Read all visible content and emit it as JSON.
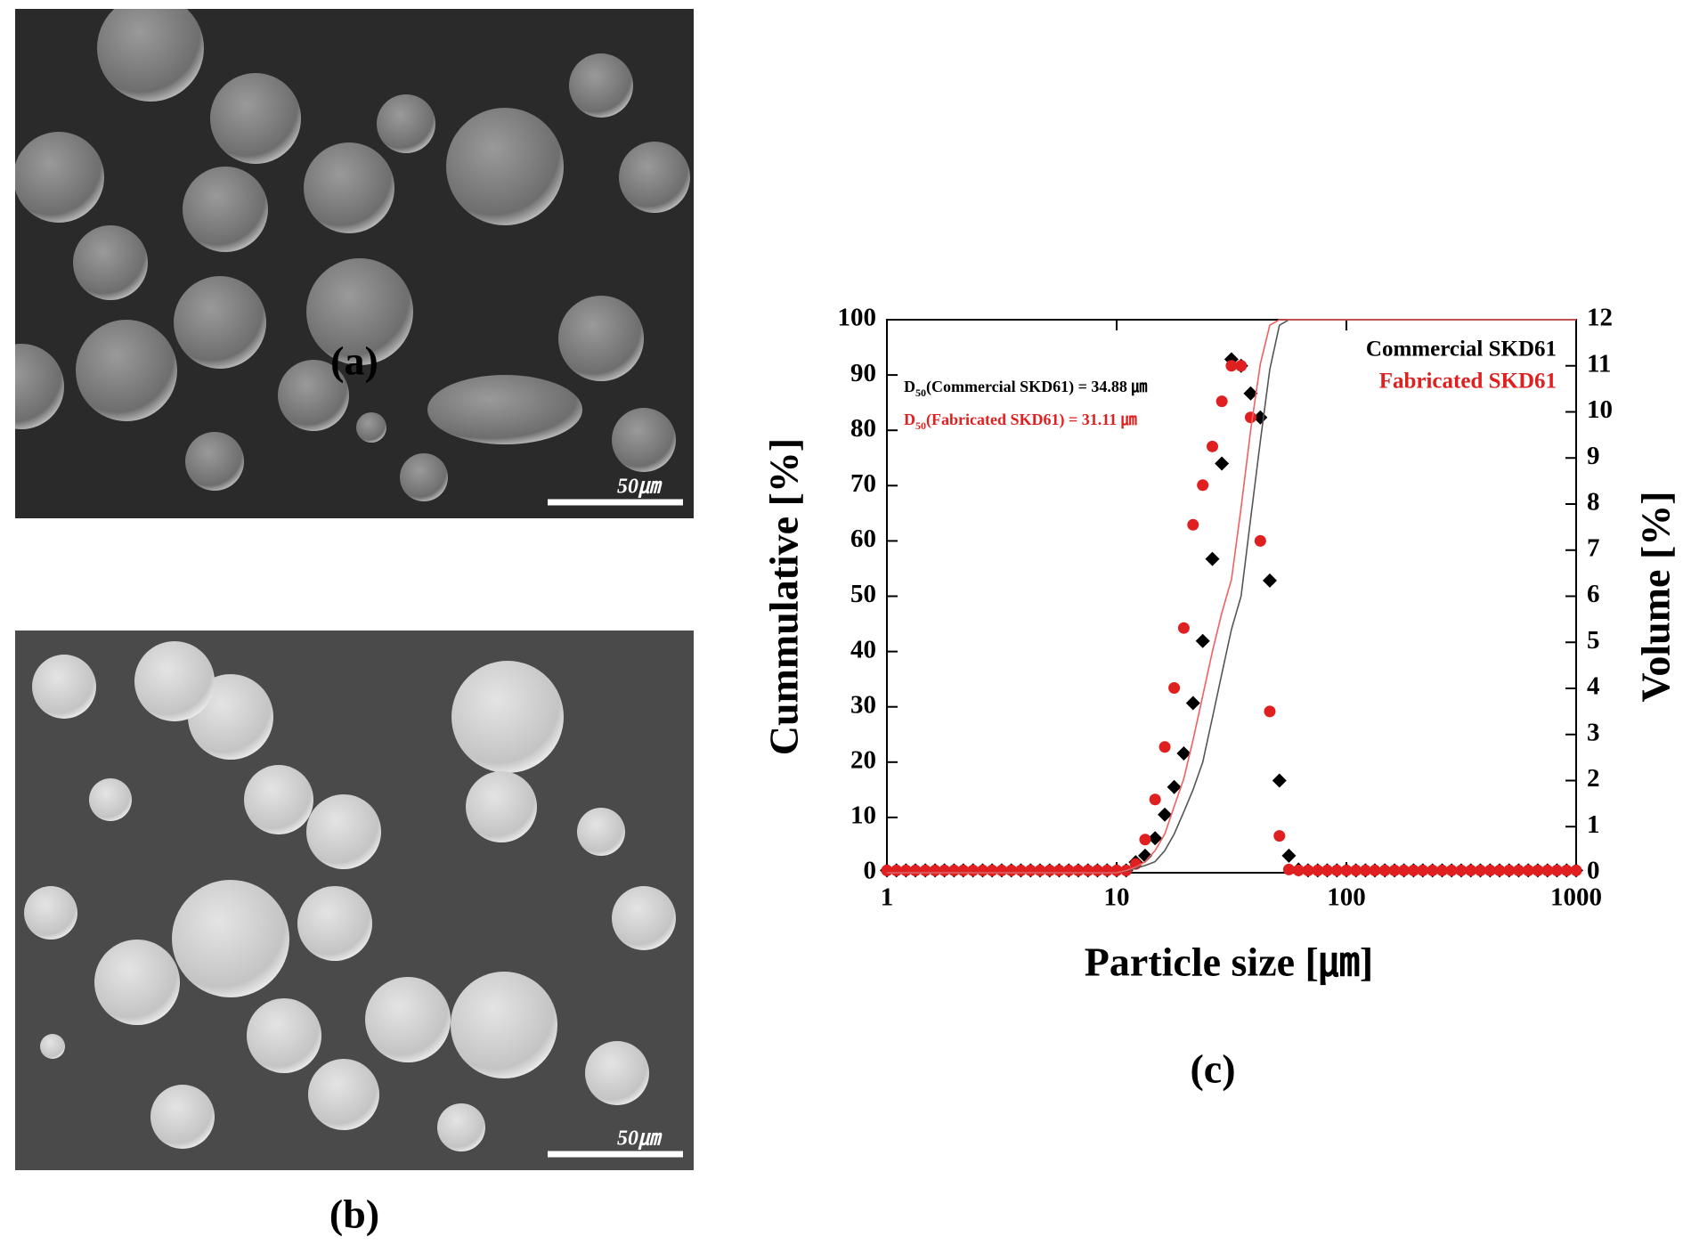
{
  "panels": [
    {
      "label": "(a)",
      "scale_bar": "50㎛"
    },
    {
      "label": "(b)",
      "scale_bar": "50㎛"
    },
    {
      "label": "(c)"
    }
  ],
  "chart_data": {
    "type": "scatter",
    "xscale": "log",
    "xlabel": "Particle size [㎛]",
    "ylabel": "Cummulative [%]",
    "y2label": "Volume [%]",
    "xlim": [
      1,
      1000
    ],
    "xticks": [
      1,
      10,
      100,
      1000
    ],
    "ylim": [
      0,
      100
    ],
    "yticks": [
      0,
      10,
      20,
      30,
      40,
      50,
      60,
      70,
      80,
      90,
      100
    ],
    "y2lim": [
      0,
      12
    ],
    "y2ticks": [
      0,
      1,
      2,
      3,
      4,
      5,
      6,
      7,
      8,
      9,
      10,
      11,
      12
    ],
    "legend": "upper right",
    "annotations": [
      {
        "text": "D",
        "subscript": "50",
        "rest": "(Commercial SKD61) = 34.88 ㎛",
        "color": "#000000"
      },
      {
        "text": "D",
        "subscript": "50",
        "rest": "(Fabricated SKD61) = 31.11 ㎛",
        "color": "#e02020"
      }
    ],
    "x": [
      1,
      1.1,
      1.21,
      1.33,
      1.47,
      1.62,
      1.78,
      1.96,
      2.15,
      2.37,
      2.61,
      2.87,
      3.16,
      3.48,
      3.83,
      4.22,
      4.64,
      5.11,
      5.62,
      6.19,
      6.81,
      7.5,
      8.25,
      9.09,
      10,
      11,
      12.1,
      13.3,
      14.7,
      16.2,
      17.8,
      19.6,
      21.5,
      23.7,
      26.1,
      28.7,
      31.6,
      34.8,
      38.3,
      42.2,
      46.4,
      51.1,
      56.2,
      61.9,
      68.1,
      75,
      82.5,
      90.9,
      100,
      110,
      121,
      133,
      147,
      162,
      178,
      196,
      215,
      237,
      261,
      287,
      316,
      348,
      383,
      422,
      464,
      511,
      562,
      619,
      681,
      750,
      825,
      909,
      1000
    ],
    "series": [
      {
        "name": "Commercial SKD61",
        "color": "#000000",
        "marker": "diamond",
        "axis": "y2",
        "values": [
          0.05,
          0.05,
          0.05,
          0.05,
          0.05,
          0.05,
          0.05,
          0.05,
          0.05,
          0.05,
          0.05,
          0.05,
          0.05,
          0.05,
          0.05,
          0.05,
          0.05,
          0.05,
          0.05,
          0.05,
          0.05,
          0.05,
          0.05,
          0.05,
          0.05,
          0.05,
          0.23,
          0.37,
          0.75,
          1.26,
          1.86,
          2.59,
          3.68,
          5.03,
          6.81,
          8.88,
          11.14,
          11.0,
          10.4,
          9.88,
          6.34,
          2.0,
          0.37,
          0.07,
          0.05,
          0.05,
          0.05,
          0.05,
          0.05,
          0.05,
          0.05,
          0.05,
          0.05,
          0.05,
          0.05,
          0.05,
          0.05,
          0.05,
          0.05,
          0.05,
          0.05,
          0.05,
          0.05,
          0.05,
          0.05,
          0.05,
          0.05,
          0.05,
          0.05,
          0.05,
          0.05,
          0.05,
          0.05
        ]
      },
      {
        "name": "Fabricated SKD61",
        "color": "#e02020",
        "marker": "circle",
        "axis": "y2",
        "values": [
          0.05,
          0.05,
          0.05,
          0.05,
          0.05,
          0.05,
          0.05,
          0.05,
          0.05,
          0.05,
          0.05,
          0.05,
          0.05,
          0.05,
          0.05,
          0.05,
          0.05,
          0.05,
          0.05,
          0.05,
          0.05,
          0.05,
          0.05,
          0.05,
          0.05,
          0.05,
          0.19,
          0.72,
          1.59,
          2.73,
          4.01,
          5.31,
          7.55,
          8.41,
          9.25,
          10.23,
          11.0,
          11.0,
          9.88,
          7.2,
          3.5,
          0.8,
          0.07,
          0.05,
          0.05,
          0.05,
          0.05,
          0.05,
          0.05,
          0.05,
          0.05,
          0.05,
          0.05,
          0.05,
          0.05,
          0.05,
          0.05,
          0.05,
          0.05,
          0.05,
          0.05,
          0.05,
          0.05,
          0.05,
          0.05,
          0.05,
          0.05,
          0.05,
          0.05,
          0.05,
          0.05,
          0.05,
          0.05
        ]
      },
      {
        "type": "line",
        "color": "#555555",
        "values": [
          0,
          0,
          0,
          0,
          0,
          0,
          0,
          0,
          0,
          0,
          0,
          0,
          0,
          0,
          0,
          0,
          0,
          0,
          0,
          0,
          0,
          0,
          0,
          0,
          0,
          0.3,
          0.8,
          1.3,
          2,
          4,
          7,
          11,
          15,
          20,
          28,
          36,
          44,
          50,
          64,
          78,
          91,
          99,
          100,
          100,
          100,
          100,
          100,
          100,
          100,
          100,
          100,
          100,
          100,
          100,
          100,
          100,
          100,
          100,
          100,
          100,
          100,
          100,
          100,
          100,
          100,
          100,
          100,
          100,
          100,
          100,
          100,
          100,
          100
        ]
      },
      {
        "type": "line",
        "color": "#f06060",
        "values": [
          0,
          0,
          0,
          0,
          0,
          0,
          0,
          0,
          0,
          0,
          0,
          0,
          0,
          0,
          0,
          0,
          0,
          0,
          0,
          0,
          0,
          0,
          0,
          0,
          0,
          0.4,
          1,
          2,
          4,
          7,
          12,
          17,
          24,
          32,
          40,
          47,
          53,
          66,
          80,
          92,
          99,
          100,
          100,
          100,
          100,
          100,
          100,
          100,
          100,
          100,
          100,
          100,
          100,
          100,
          100,
          100,
          100,
          100,
          100,
          100,
          100,
          100,
          100,
          100,
          100,
          100,
          100,
          100,
          100,
          100,
          100,
          100,
          100
        ]
      }
    ]
  }
}
